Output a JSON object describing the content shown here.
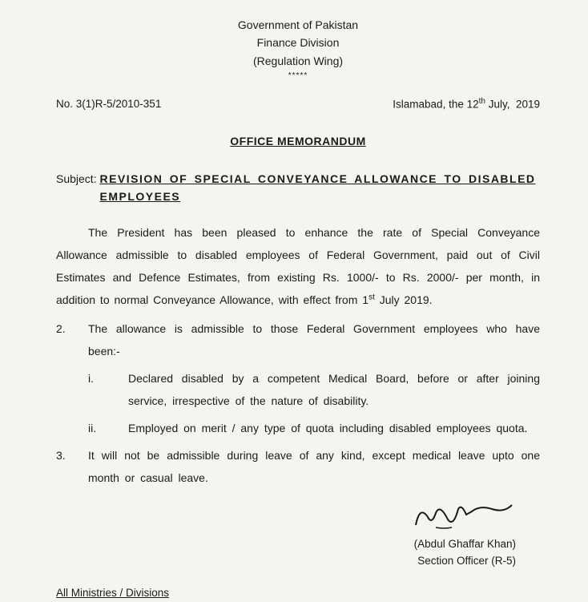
{
  "header": {
    "line1": "Government of Pakistan",
    "line2": "Finance Division",
    "line3": "(Regulation Wing)",
    "stars": "*****"
  },
  "ref": {
    "number": "No. 3(1)R-5/2010-351",
    "place_date_html": "Islamabad, the 12<sup>th</sup> July,  2019"
  },
  "title": "OFFICE MEMORANDUM",
  "subject": {
    "label": "Subject: ",
    "text_line1": "REVISION OF SPECIAL CONVEYANCE ALLOWANCE TO DISABLED",
    "text_line2": "EMPLOYEES"
  },
  "paras": {
    "p1_html": "The President has been pleased to enhance the rate of Special Conveyance Allowance admissible to disabled employees of Federal Government, paid out of Civil Estimates and Defence Estimates, from existing Rs. 1000/- to Rs. 2000/- per month, in addition to normal Conveyance Allowance, with effect from 1<sup>st</sup> July 2019.",
    "p2_num": "2.",
    "p2_text": "The allowance is admissible to those Federal Government employees who have been:-",
    "p2_i_num": "i.",
    "p2_i_text": "Declared disabled by a competent Medical Board, before or after joining service, irrespective of the nature of disability.",
    "p2_ii_num": "ii.",
    "p2_ii_text": "Employed on merit / any type of quota including disabled employees quota.",
    "p3_num": "3.",
    "p3_text": "It will not be admissible during leave of any kind, except medical leave upto one month or casual leave."
  },
  "signature": {
    "name": "(Abdul Ghaffar Khan)",
    "title": "Section Officer (R-5)"
  },
  "distribution": "All Ministries / Divisions",
  "style": {
    "background": "#f5f5f0",
    "text_color": "#1a1a1a",
    "signature_stroke": "#1a1a1a"
  }
}
